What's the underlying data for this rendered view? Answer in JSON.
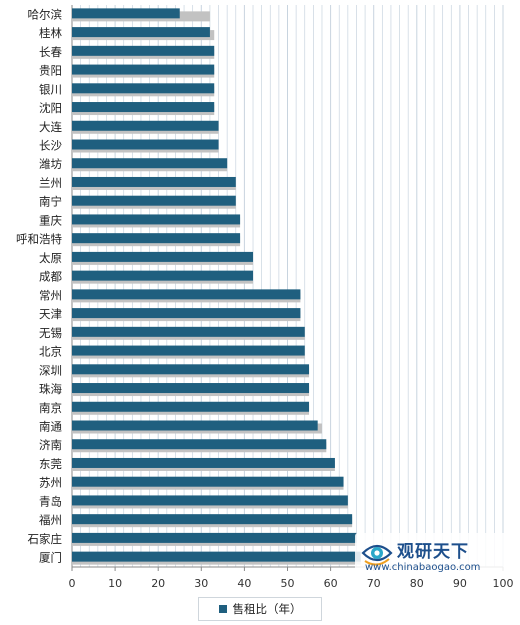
{
  "chart_data": {
    "type": "bar",
    "orientation": "horizontal",
    "categories": [
      "哈尔滨",
      "桂林",
      "长春",
      "贵阳",
      "银川",
      "沈阳",
      "大连",
      "长沙",
      "潍坊",
      "兰州",
      "南宁",
      "重庆",
      "呼和浩特",
      "太原",
      "成都",
      "常州",
      "天津",
      "无锡",
      "北京",
      "深圳",
      "珠海",
      "南京",
      "南通",
      "济南",
      "东莞",
      "苏州",
      "青岛",
      "福州",
      "石家庄",
      "厦门"
    ],
    "series": [
      {
        "name": "售租比（年）",
        "values": [
          25,
          32,
          33,
          33,
          33,
          33,
          34,
          34,
          36,
          38,
          38,
          39,
          39,
          42,
          42,
          53,
          53,
          54,
          54,
          55,
          55,
          55,
          57,
          59,
          61,
          63,
          64,
          65,
          66,
          67
        ],
        "shadow_values": [
          32,
          33,
          33,
          33,
          33,
          33,
          34,
          34,
          36,
          38,
          38,
          39,
          39,
          42,
          42,
          53,
          53,
          54,
          54,
          55,
          55,
          55,
          58,
          59,
          61,
          63,
          64,
          65,
          66,
          67
        ]
      }
    ],
    "xlim": [
      0,
      100
    ],
    "xticks": [
      "0",
      "10",
      "20",
      "30",
      "40",
      "50",
      "60",
      "70",
      "80",
      "90",
      "100"
    ],
    "grid": true,
    "legend_position": "bottom",
    "colors": {
      "bar": "#1f5f7f",
      "shadow": "#c2c2c2",
      "grid": "#c8d4df",
      "plot_background": "#ffffff"
    }
  },
  "legend": {
    "label": "售租比（年）",
    "color": "#1f5f7f"
  },
  "watermark": {
    "name": "观研天下",
    "url": "www.chinabaogao.com",
    "color": "#1d4f8c"
  }
}
